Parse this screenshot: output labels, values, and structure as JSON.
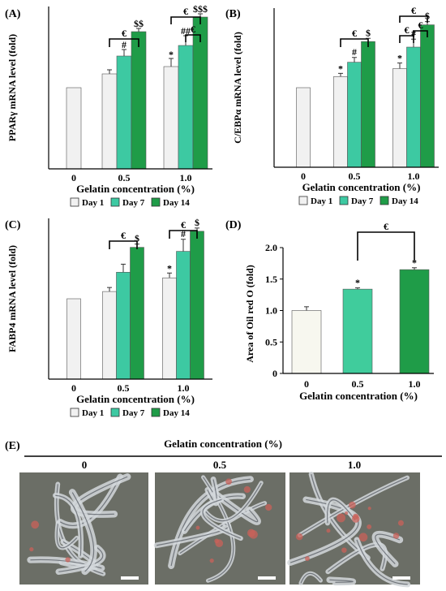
{
  "panels": [
    {
      "letter": "(A)"
    },
    {
      "letter": "(B)"
    },
    {
      "letter": "(C)"
    },
    {
      "letter": "(D)"
    },
    {
      "letter": "(E)"
    }
  ],
  "colors": {
    "day1": "#f1f1f1",
    "day7": "#3dc9a2",
    "day14": "#1f9c48",
    "oil_0": "#f7f7ef",
    "oil_05": "#40cc9c",
    "oil_10": "#1f9c48"
  },
  "chart_data": [
    {
      "panel": "(A)",
      "type": "bar",
      "ylabel": "PPARγ mRNA level (fold)",
      "xlabel": "Gelatin concentration (%)",
      "categories": [
        "0",
        "0.5",
        "1.0"
      ],
      "series": [
        {
          "name": "Day 1",
          "values": [
            1.0,
            1.17,
            1.26
          ],
          "errors": [
            0,
            0.05,
            0.1
          ]
        },
        {
          "name": "Day 7",
          "values": [
            null,
            1.39,
            1.52
          ],
          "errors": [
            0,
            0.08,
            0.12
          ]
        },
        {
          "name": "Day 14",
          "values": [
            null,
            1.69,
            1.87
          ],
          "errors": [
            0,
            0.04,
            0.04
          ]
        }
      ],
      "ylim": [
        0,
        2.0
      ],
      "annotations": [
        "#",
        "$$",
        "*",
        "##",
        "$$$",
        "€"
      ]
    },
    {
      "panel": "(B)",
      "type": "bar",
      "ylabel": "C/EBPα mRNA level (fold)",
      "xlabel": "Gelatin concentration (%)",
      "categories": [
        "0",
        "0.5",
        "1.0"
      ],
      "series": [
        {
          "name": "Day 1",
          "values": [
            1.0,
            1.14,
            1.24
          ],
          "errors": [
            0,
            0.04,
            0.07
          ]
        },
        {
          "name": "Day 7",
          "values": [
            null,
            1.32,
            1.51
          ],
          "errors": [
            0,
            0.06,
            0.1
          ]
        },
        {
          "name": "Day 14",
          "values": [
            null,
            1.58,
            1.79
          ],
          "errors": [
            0,
            0.04,
            0.04
          ]
        }
      ],
      "ylim": [
        0,
        2.0
      ],
      "annotations": [
        "*",
        "#",
        "$",
        "€"
      ]
    },
    {
      "panel": "(C)",
      "type": "bar",
      "ylabel": "FABP4 mRNA level (fold)",
      "xlabel": "Gelatin concentration (%)",
      "categories": [
        "0",
        "0.5",
        "1.0"
      ],
      "series": [
        {
          "name": "Day 1",
          "values": [
            1.0,
            1.09,
            1.26
          ],
          "errors": [
            0,
            0.05,
            0.06
          ]
        },
        {
          "name": "Day 7",
          "values": [
            null,
            1.33,
            1.59
          ],
          "errors": [
            0,
            0.1,
            0.15
          ]
        },
        {
          "name": "Day 14",
          "values": [
            null,
            1.64,
            1.84
          ],
          "errors": [
            0,
            0.04,
            0.04
          ]
        }
      ],
      "ylim": [
        0,
        2.0
      ],
      "annotations": [
        "*",
        "#",
        "$",
        "€"
      ]
    },
    {
      "panel": "(D)",
      "type": "bar",
      "ylabel": "Area of Oil red O (fold)",
      "xlabel": "Gelatin concentration (%)",
      "categories": [
        "0",
        "0.5",
        "1.0"
      ],
      "values": [
        1.0,
        1.34,
        1.65
      ],
      "errors": [
        0.06,
        0.02,
        0.03
      ],
      "ylim": [
        0,
        2.0
      ],
      "yticks": [
        "0",
        "0.5",
        "1.0",
        "1.5",
        "2.0"
      ],
      "annotations": [
        "*",
        "*",
        "€"
      ]
    }
  ],
  "micrographs": {
    "title": "Gelatin concentration (%)",
    "labels": [
      "0",
      "0.5",
      "1.0"
    ]
  }
}
